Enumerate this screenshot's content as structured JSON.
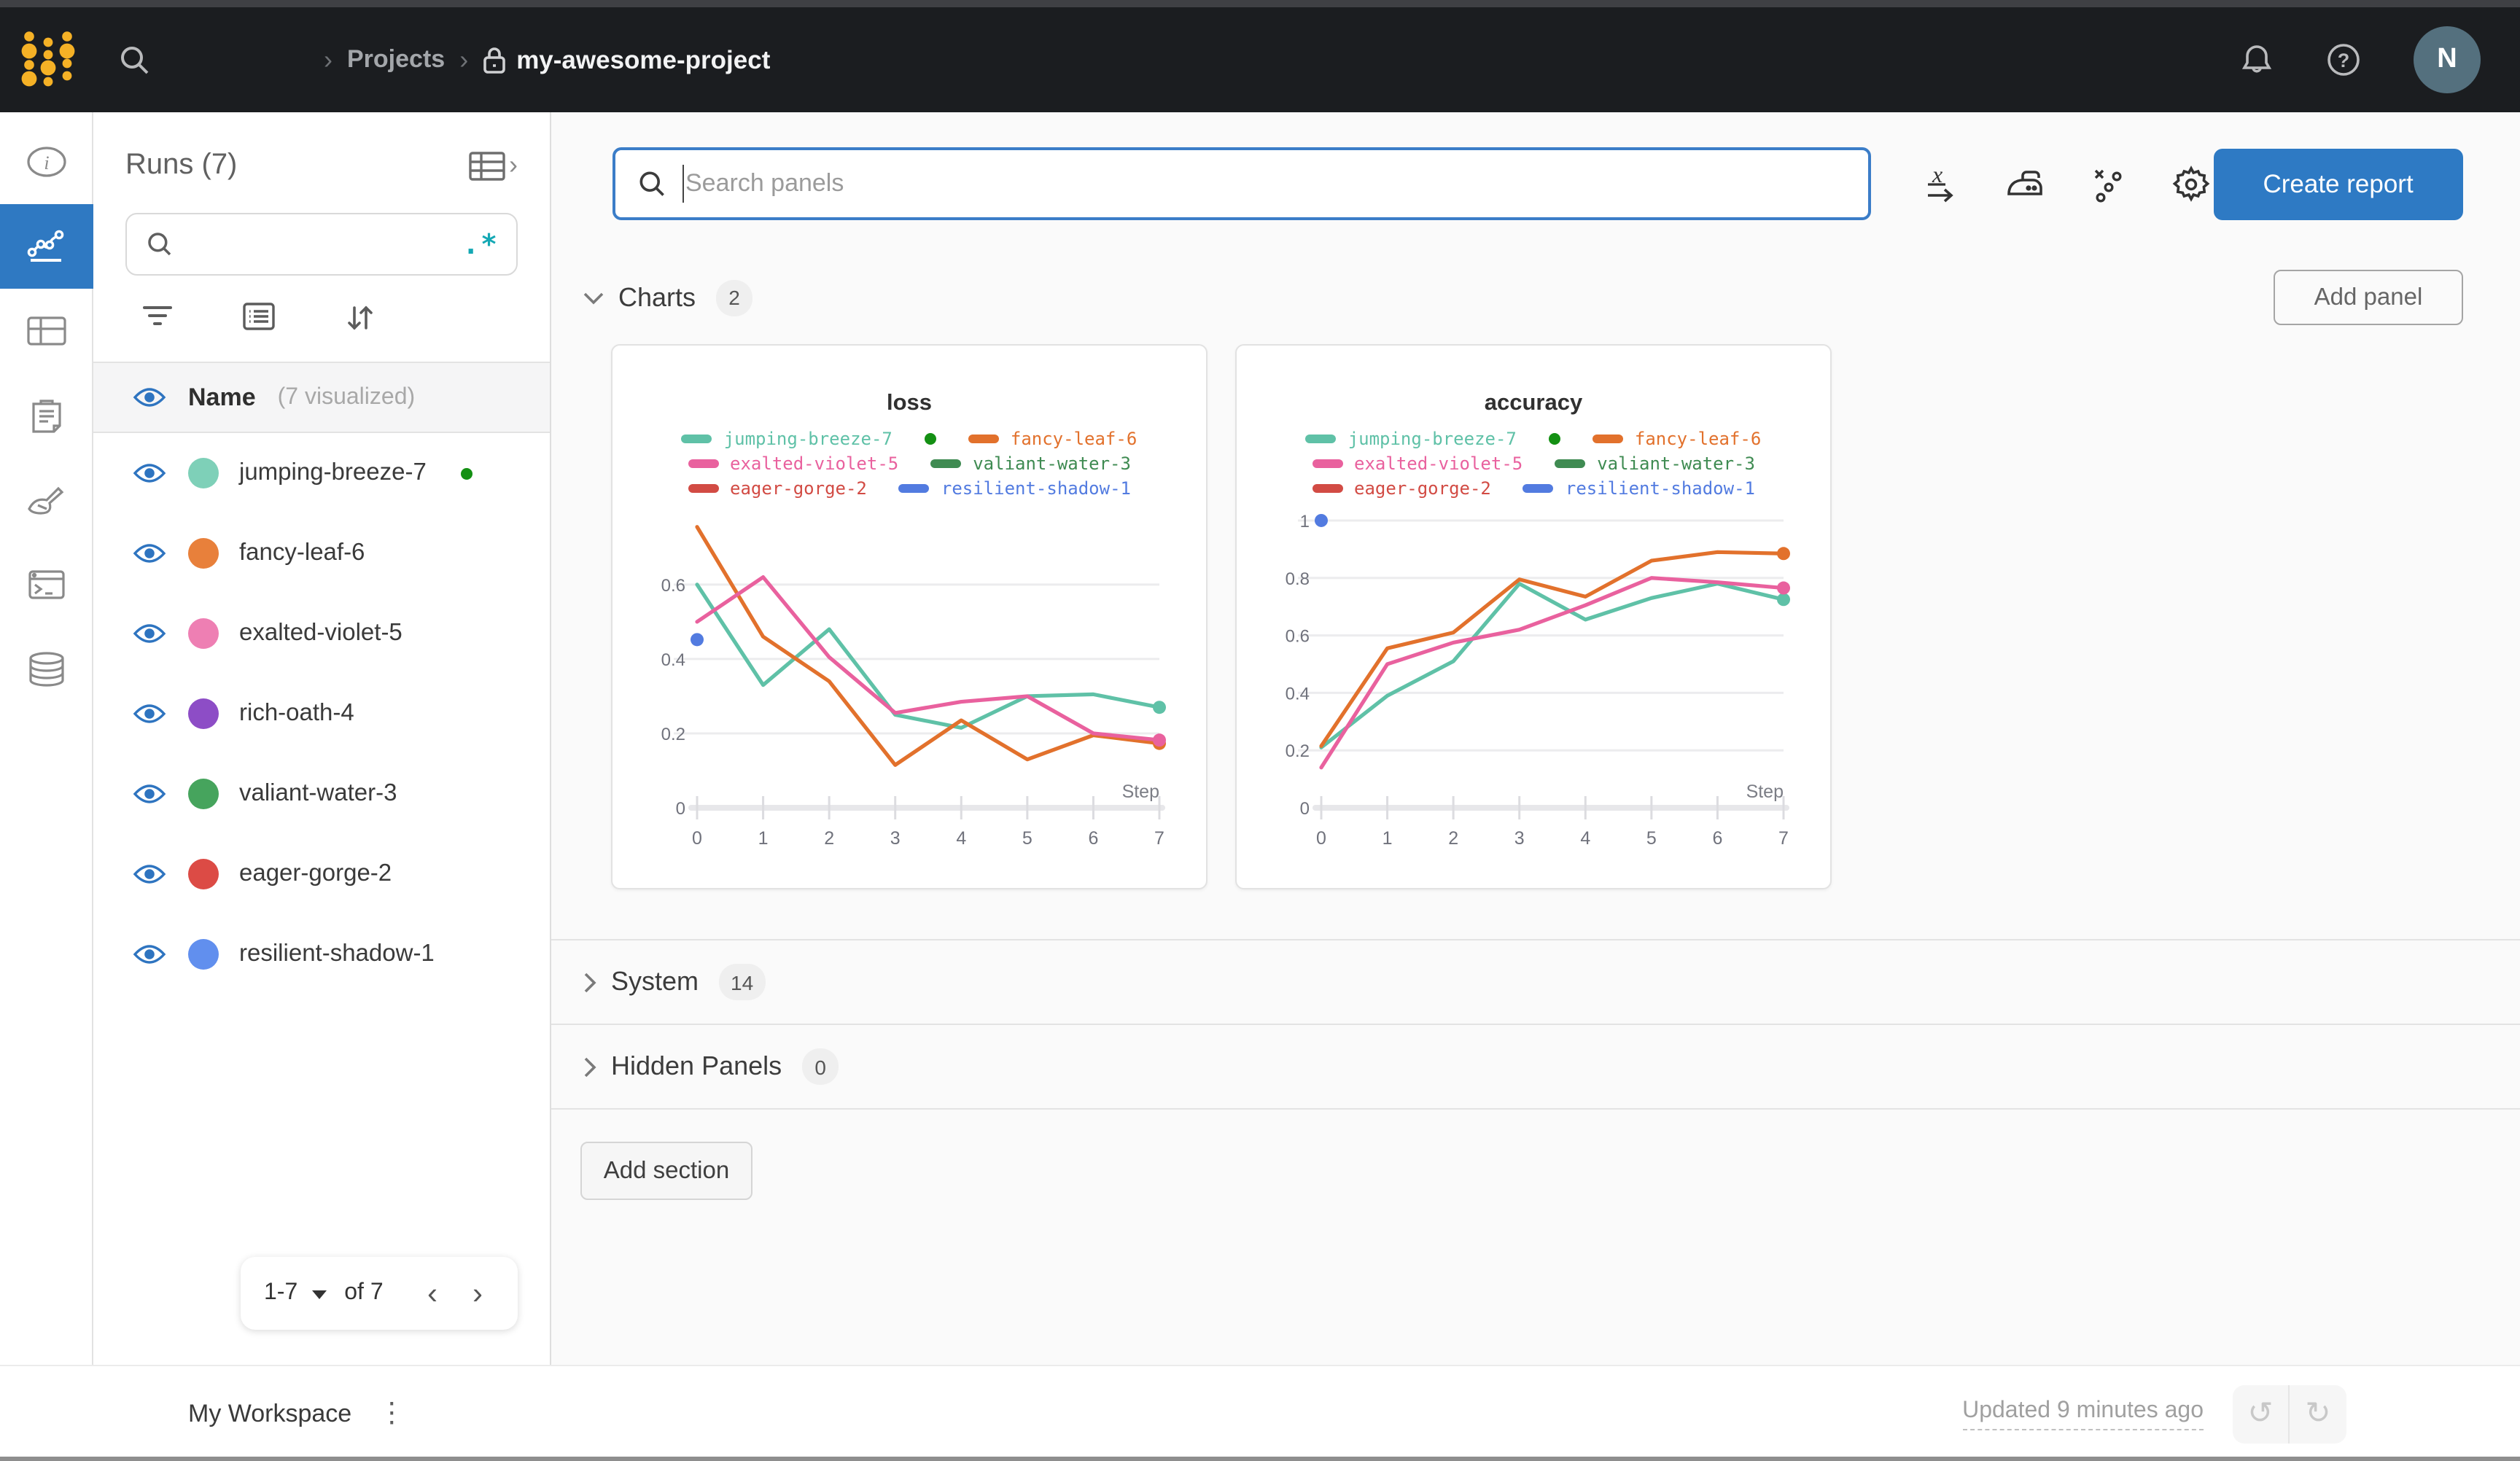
{
  "topbar": {
    "breadcrumb": {
      "projects": "Projects",
      "project": "my-awesome-project"
    },
    "avatar_initial": "N"
  },
  "runs_sidebar": {
    "title": "Runs (7)",
    "regex_icon": ".*",
    "header": {
      "name": "Name",
      "visualized": "(7 visualized)"
    },
    "items": [
      {
        "name": "jumping-breeze-7",
        "color": "#7ed0b8",
        "live": true
      },
      {
        "name": "fancy-leaf-6",
        "color": "#e8803b",
        "live": false
      },
      {
        "name": "exalted-violet-5",
        "color": "#ee7fb3",
        "live": false
      },
      {
        "name": "rich-oath-4",
        "color": "#8d4dc6",
        "live": false
      },
      {
        "name": "valiant-water-3",
        "color": "#46a45d",
        "live": false
      },
      {
        "name": "eager-gorge-2",
        "color": "#dc4b45",
        "live": false
      },
      {
        "name": "resilient-shadow-1",
        "color": "#618fee",
        "live": false
      }
    ],
    "pagination": {
      "range": "1-7",
      "of": "of 7"
    }
  },
  "main": {
    "search": {
      "placeholder": "Search panels"
    },
    "create_report_label": "Create report",
    "add_panel_label": "Add panel",
    "add_section_label": "Add section",
    "sections": [
      {
        "label": "Charts",
        "count": "2"
      },
      {
        "label": "System",
        "count": "14"
      },
      {
        "label": "Hidden Panels",
        "count": "0"
      }
    ]
  },
  "footer": {
    "workspace": "My Workspace",
    "updated": "Updated 9 minutes ago"
  },
  "chart_data": [
    {
      "type": "line",
      "title": "loss",
      "xlabel": "Step",
      "x": [
        0,
        1,
        2,
        3,
        4,
        5,
        6,
        7
      ],
      "ylim": [
        0,
        0.78
      ],
      "yticks": [
        0,
        0.2,
        0.4,
        0.6
      ],
      "grid": true,
      "legend_position": "top",
      "legend_rows": [
        [
          0,
          1
        ],
        [
          2,
          3
        ],
        [
          4,
          5
        ]
      ],
      "active_series": 0,
      "active_dot_color": "#149013",
      "series": [
        {
          "name": "jumping-breeze-7",
          "color": "#5fc1a7",
          "values": [
            0.6,
            0.33,
            0.48,
            0.25,
            0.215,
            0.3,
            0.305,
            0.27
          ],
          "end_dot": true
        },
        {
          "name": "fancy-leaf-6",
          "color": "#e2712c",
          "values": [
            0.755,
            0.46,
            0.34,
            0.115,
            0.235,
            0.13,
            0.195,
            0.173
          ],
          "end_dot": true
        },
        {
          "name": "exalted-violet-5",
          "color": "#e9619e",
          "values": [
            0.5,
            0.62,
            0.405,
            0.255,
            0.285,
            0.3,
            0.2,
            0.182
          ],
          "end_dot": true
        },
        {
          "name": "valiant-water-3",
          "color": "#3f8b52",
          "values": []
        },
        {
          "name": "eager-gorge-2",
          "color": "#d24b44",
          "values": []
        },
        {
          "name": "resilient-shadow-1",
          "color": "#527be0",
          "values": [],
          "points": [
            [
              0,
              0.452
            ]
          ]
        }
      ]
    },
    {
      "type": "line",
      "title": "accuracy",
      "xlabel": "Step",
      "x": [
        0,
        1,
        2,
        3,
        4,
        5,
        6,
        7
      ],
      "ylim": [
        0,
        1.01
      ],
      "yticks": [
        0,
        0.2,
        0.4,
        0.6,
        0.8,
        1
      ],
      "grid": true,
      "legend_position": "top",
      "legend_rows": [
        [
          0,
          1
        ],
        [
          2,
          3
        ],
        [
          4,
          5
        ]
      ],
      "active_series": 0,
      "active_dot_color": "#149013",
      "series": [
        {
          "name": "jumping-breeze-7",
          "color": "#5fc1a7",
          "values": [
            0.21,
            0.39,
            0.51,
            0.78,
            0.655,
            0.73,
            0.78,
            0.725
          ],
          "end_dot": true
        },
        {
          "name": "fancy-leaf-6",
          "color": "#e2712c",
          "values": [
            0.215,
            0.555,
            0.61,
            0.795,
            0.735,
            0.86,
            0.89,
            0.885
          ],
          "end_dot": true
        },
        {
          "name": "exalted-violet-5",
          "color": "#e9619e",
          "values": [
            0.14,
            0.5,
            0.575,
            0.62,
            0.705,
            0.8,
            0.785,
            0.765
          ],
          "end_dot": true
        },
        {
          "name": "valiant-water-3",
          "color": "#3f8b52",
          "values": []
        },
        {
          "name": "eager-gorge-2",
          "color": "#d24b44",
          "values": []
        },
        {
          "name": "resilient-shadow-1",
          "color": "#527be0",
          "values": [],
          "points": [
            [
              0,
              1.0
            ]
          ]
        }
      ]
    }
  ]
}
